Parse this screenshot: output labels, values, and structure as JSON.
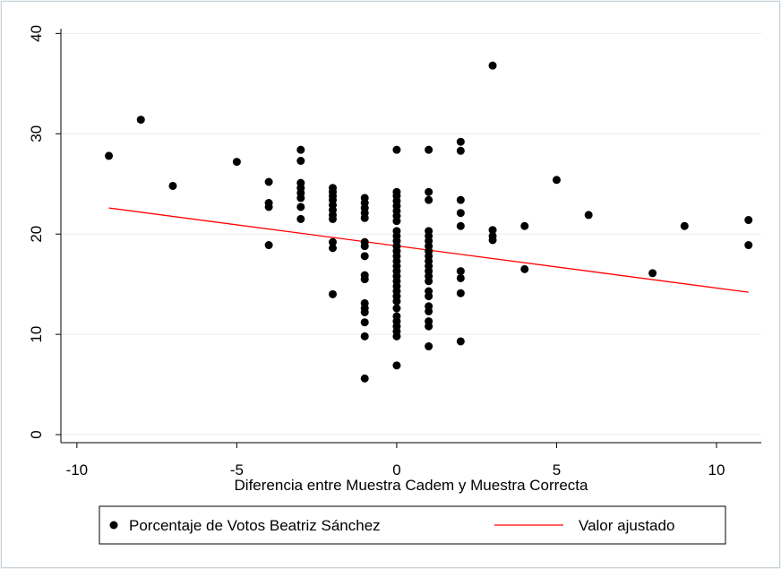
{
  "chart_data": {
    "type": "scatter",
    "xlabel": "Diferencia entre Muestra Cadem y Muestra Correcta",
    "ylabel": "",
    "xlim": [
      -10.5,
      11.4
    ],
    "ylim": [
      -0.8,
      40.3
    ],
    "xticks": [
      -10,
      -5,
      0,
      5,
      10
    ],
    "yticks": [
      0,
      10,
      20,
      30,
      40
    ],
    "x_tick_labels": [
      "-10",
      "-5",
      "0",
      "5",
      "10"
    ],
    "y_tick_labels": [
      "0",
      "10",
      "20",
      "30",
      "40"
    ],
    "grid": "horizontal",
    "legend_position": "bottom",
    "series": [
      {
        "name": "Porcentaje de Votos Beatriz Sánchez",
        "kind": "scatter",
        "color": "#000000",
        "points": [
          [
            -9,
            27.8
          ],
          [
            -8,
            31.4
          ],
          [
            -7,
            24.8
          ],
          [
            -5,
            27.2
          ],
          [
            -4,
            25.2
          ],
          [
            -4,
            23.1
          ],
          [
            -4,
            22.7
          ],
          [
            -4,
            18.9
          ],
          [
            -3,
            28.4
          ],
          [
            -3,
            27.3
          ],
          [
            -3,
            25.1
          ],
          [
            -3,
            24.6
          ],
          [
            -3,
            24.1
          ],
          [
            -3,
            23.6
          ],
          [
            -3,
            22.7
          ],
          [
            -3,
            21.5
          ],
          [
            -2,
            24.6
          ],
          [
            -2,
            24.2
          ],
          [
            -2,
            23.8
          ],
          [
            -2,
            23.4
          ],
          [
            -2,
            22.9
          ],
          [
            -2,
            22.4
          ],
          [
            -2,
            21.9
          ],
          [
            -2,
            21.5
          ],
          [
            -2,
            19.2
          ],
          [
            -2,
            18.6
          ],
          [
            -2,
            14.0
          ],
          [
            -1,
            23.6
          ],
          [
            -1,
            23.1
          ],
          [
            -1,
            22.6
          ],
          [
            -1,
            22.1
          ],
          [
            -1,
            21.6
          ],
          [
            -1,
            19.2
          ],
          [
            -1,
            18.8
          ],
          [
            -1,
            17.8
          ],
          [
            -1,
            15.9
          ],
          [
            -1,
            15.5
          ],
          [
            -1,
            13.1
          ],
          [
            -1,
            12.6
          ],
          [
            -1,
            12.2
          ],
          [
            -1,
            11.2
          ],
          [
            -1,
            9.8
          ],
          [
            -1,
            5.6
          ],
          [
            0,
            28.4
          ],
          [
            0,
            24.2
          ],
          [
            0,
            23.8
          ],
          [
            0,
            23.3
          ],
          [
            0,
            22.8
          ],
          [
            0,
            22.3
          ],
          [
            0,
            21.8
          ],
          [
            0,
            21.3
          ],
          [
            0,
            20.3
          ],
          [
            0,
            19.8
          ],
          [
            0,
            19.3
          ],
          [
            0,
            18.8
          ],
          [
            0,
            18.3
          ],
          [
            0,
            17.8
          ],
          [
            0,
            17.3
          ],
          [
            0,
            16.8
          ],
          [
            0,
            16.3
          ],
          [
            0,
            15.8
          ],
          [
            0,
            15.3
          ],
          [
            0,
            14.8
          ],
          [
            0,
            14.3
          ],
          [
            0,
            13.8
          ],
          [
            0,
            13.3
          ],
          [
            0,
            12.6
          ],
          [
            0,
            11.8
          ],
          [
            0,
            11.3
          ],
          [
            0,
            10.8
          ],
          [
            0,
            10.3
          ],
          [
            0,
            9.8
          ],
          [
            0,
            6.9
          ],
          [
            1,
            28.4
          ],
          [
            1,
            24.2
          ],
          [
            1,
            23.4
          ],
          [
            1,
            20.3
          ],
          [
            1,
            19.8
          ],
          [
            1,
            19.3
          ],
          [
            1,
            18.8
          ],
          [
            1,
            18.3
          ],
          [
            1,
            17.8
          ],
          [
            1,
            17.3
          ],
          [
            1,
            16.8
          ],
          [
            1,
            16.3
          ],
          [
            1,
            15.8
          ],
          [
            1,
            15.3
          ],
          [
            1,
            14.3
          ],
          [
            1,
            13.8
          ],
          [
            1,
            12.8
          ],
          [
            1,
            12.3
          ],
          [
            1,
            11.3
          ],
          [
            1,
            10.8
          ],
          [
            1,
            8.8
          ],
          [
            2,
            29.2
          ],
          [
            2,
            28.3
          ],
          [
            2,
            23.4
          ],
          [
            2,
            22.1
          ],
          [
            2,
            20.8
          ],
          [
            2,
            16.3
          ],
          [
            2,
            15.6
          ],
          [
            2,
            14.1
          ],
          [
            2,
            9.3
          ],
          [
            3,
            36.8
          ],
          [
            3,
            20.4
          ],
          [
            3,
            19.8
          ],
          [
            3,
            19.4
          ],
          [
            4,
            20.8
          ],
          [
            4,
            16.5
          ],
          [
            5,
            25.4
          ],
          [
            6,
            21.9
          ],
          [
            8,
            16.1
          ],
          [
            9,
            20.8
          ],
          [
            11,
            21.4
          ],
          [
            11,
            18.9
          ]
        ]
      },
      {
        "name": "Valor ajustado",
        "kind": "line",
        "color": "#ff0000",
        "x": [
          -9,
          11
        ],
        "y": [
          22.6,
          14.2
        ]
      }
    ]
  }
}
